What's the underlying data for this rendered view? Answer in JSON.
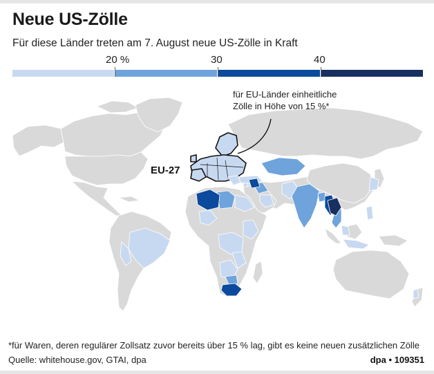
{
  "title": "Neue US-Zölle",
  "subtitle": "Für diese Länder treten am 7. August neue US-Zölle in Kraft",
  "legend": {
    "tick_labels": [
      "20 %",
      "30",
      "40"
    ],
    "colors": [
      "#c7d9f0",
      "#6ea3dc",
      "#0b4a9c",
      "#18305f"
    ]
  },
  "annotation": {
    "line1": "für EU-Länder einheitliche",
    "line2": "Zölle in Höhe von 15 %*"
  },
  "eu_label": "EU-27",
  "footnote": "*für Waren, deren regulärer Zollsatz zuvor bereits über 15 % lag, gibt es keine neuen zusätzlichen Zölle",
  "source": "Quelle: whitehouse.gov, GTAI, dpa",
  "credit": "dpa • 109351",
  "map_colors": {
    "land": "#d9d9d9",
    "tier_15_20": "#c7d9f0",
    "tier_20_30": "#6ea3dc",
    "tier_30_40": "#0b4a9c",
    "tier_40_plus": "#18305f"
  }
}
